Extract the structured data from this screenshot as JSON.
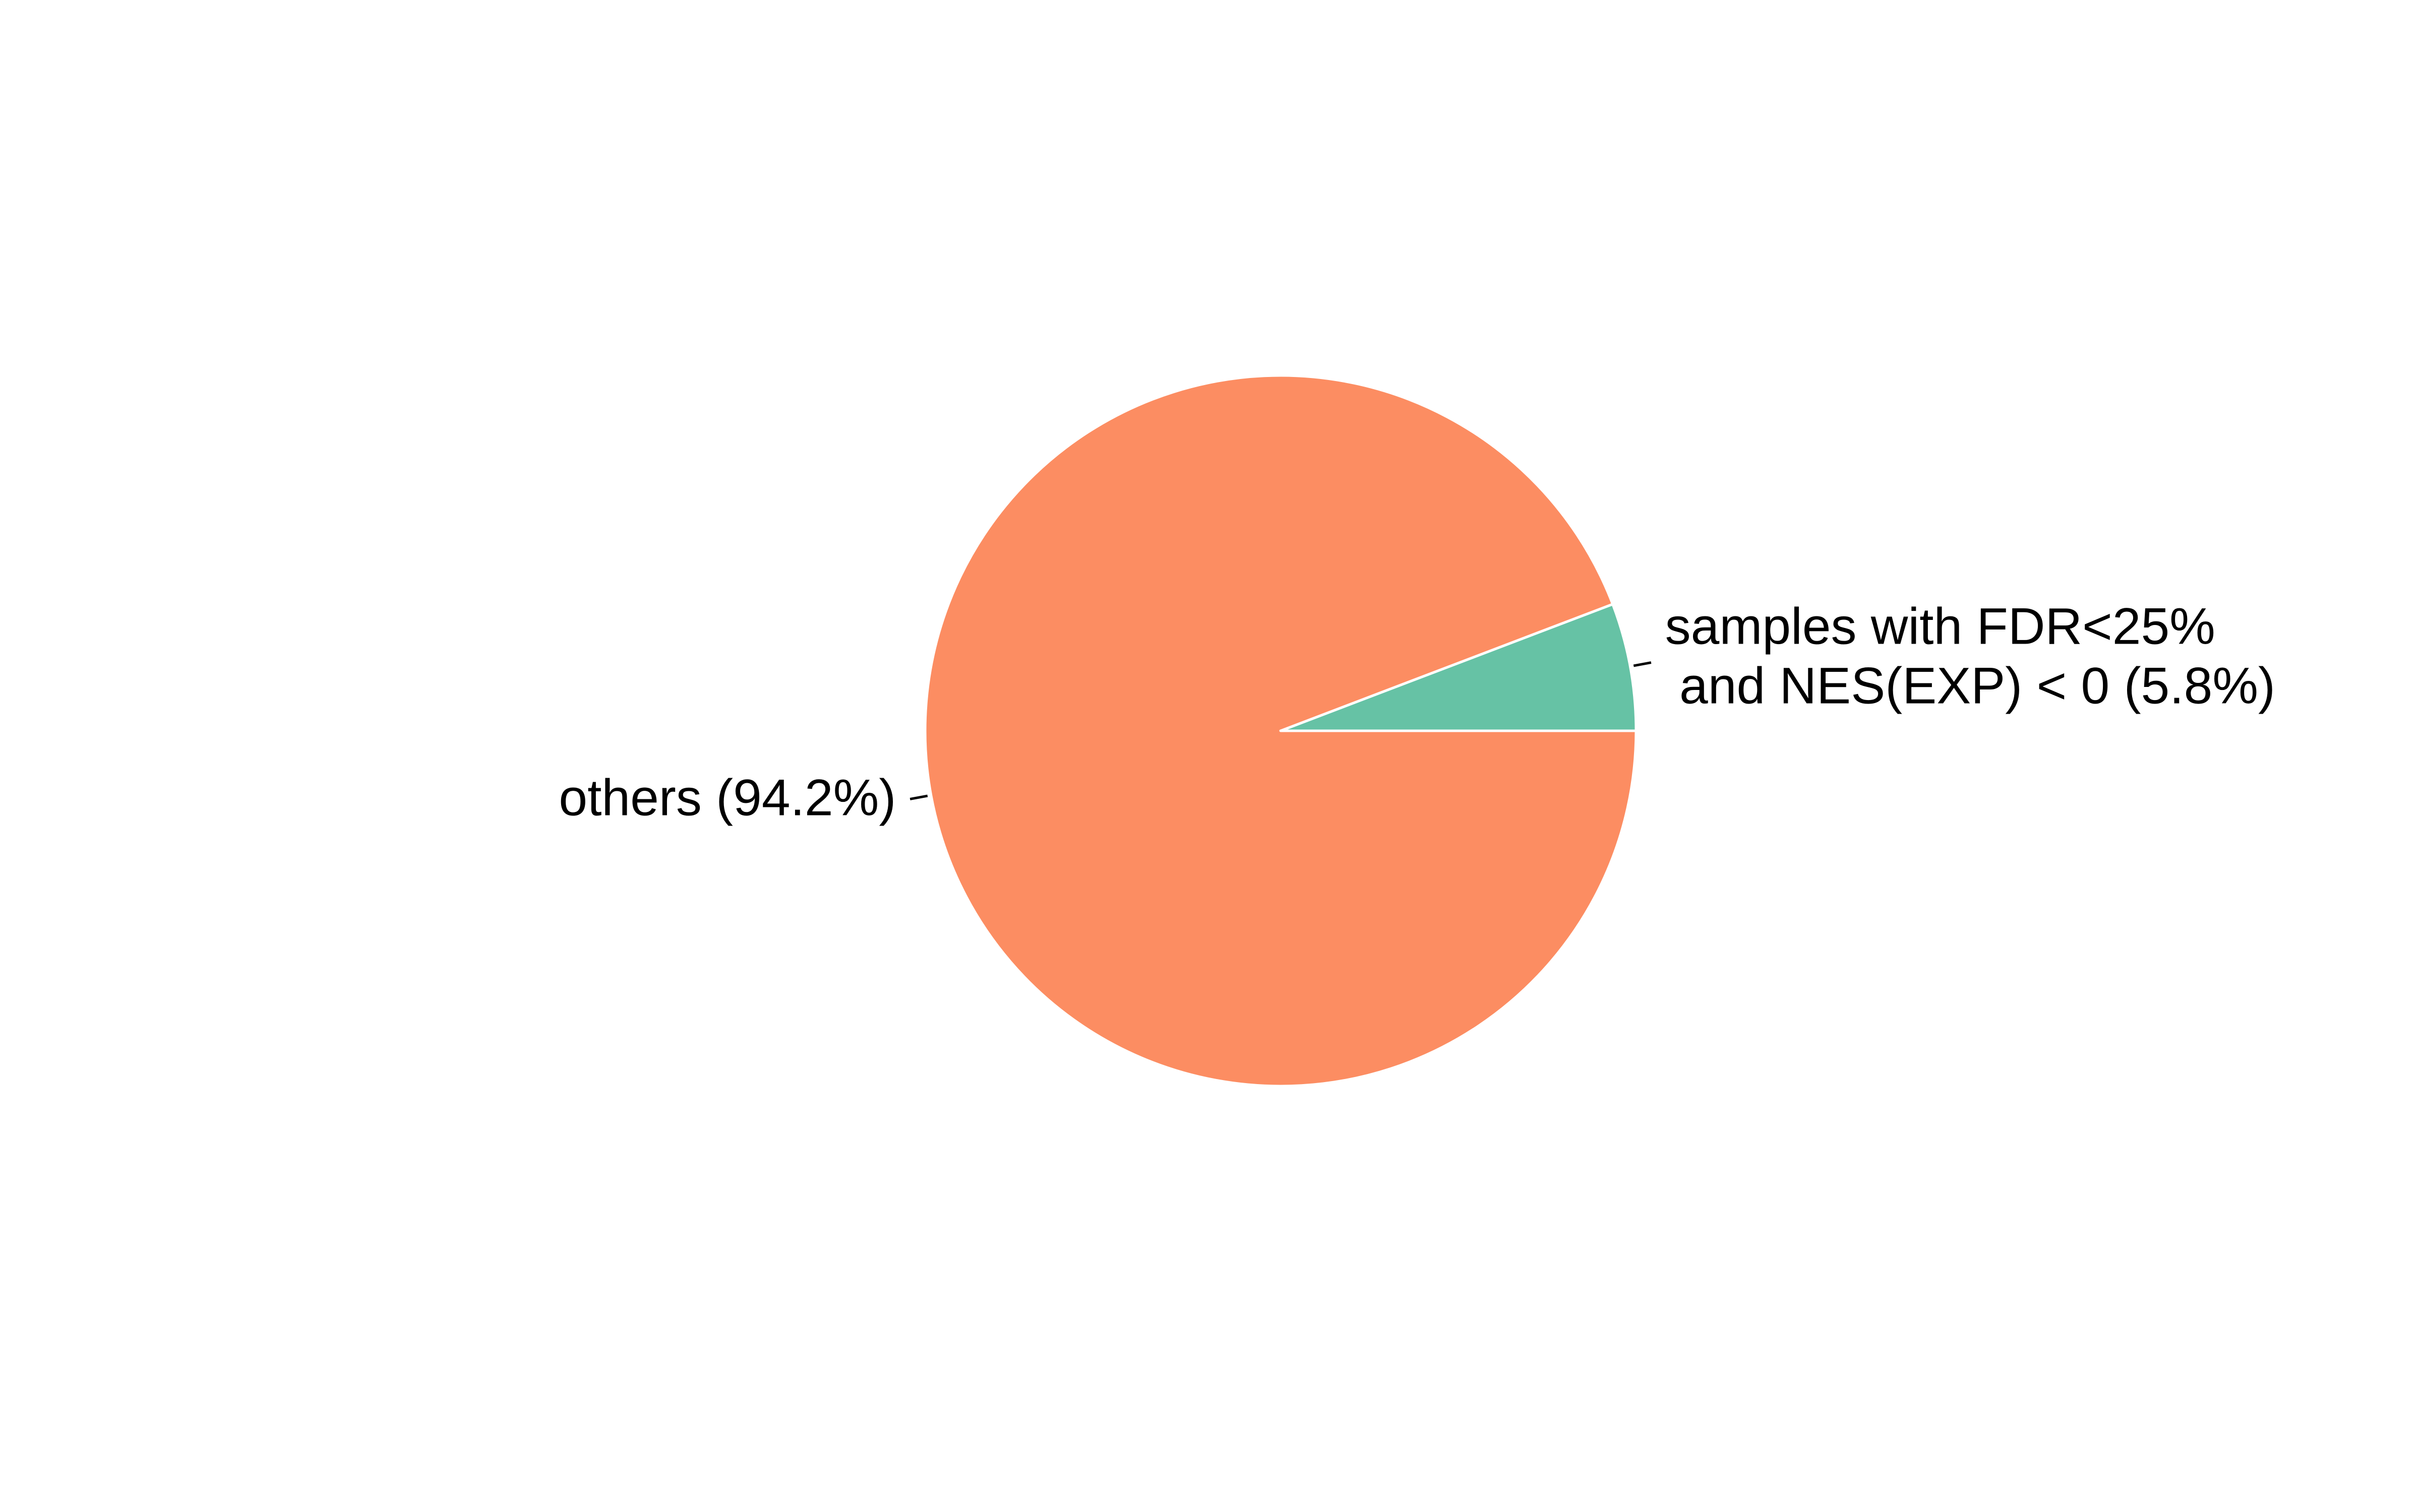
{
  "chart_data": {
    "type": "pie",
    "title": "",
    "start": "right",
    "direction": "counterclockwise",
    "slices": [
      {
        "label_lines": [
          "samples with FDR<25%",
          " and NES(EXP) < 0 (5.8%)"
        ],
        "value": 5.8,
        "color": "#66c2a5"
      },
      {
        "label_lines": [
          "others (94.2%)"
        ],
        "value": 94.2,
        "color": "#fc8d62"
      }
    ],
    "slice_border_color": "#ffffff",
    "leader_line_color": "#000000"
  }
}
